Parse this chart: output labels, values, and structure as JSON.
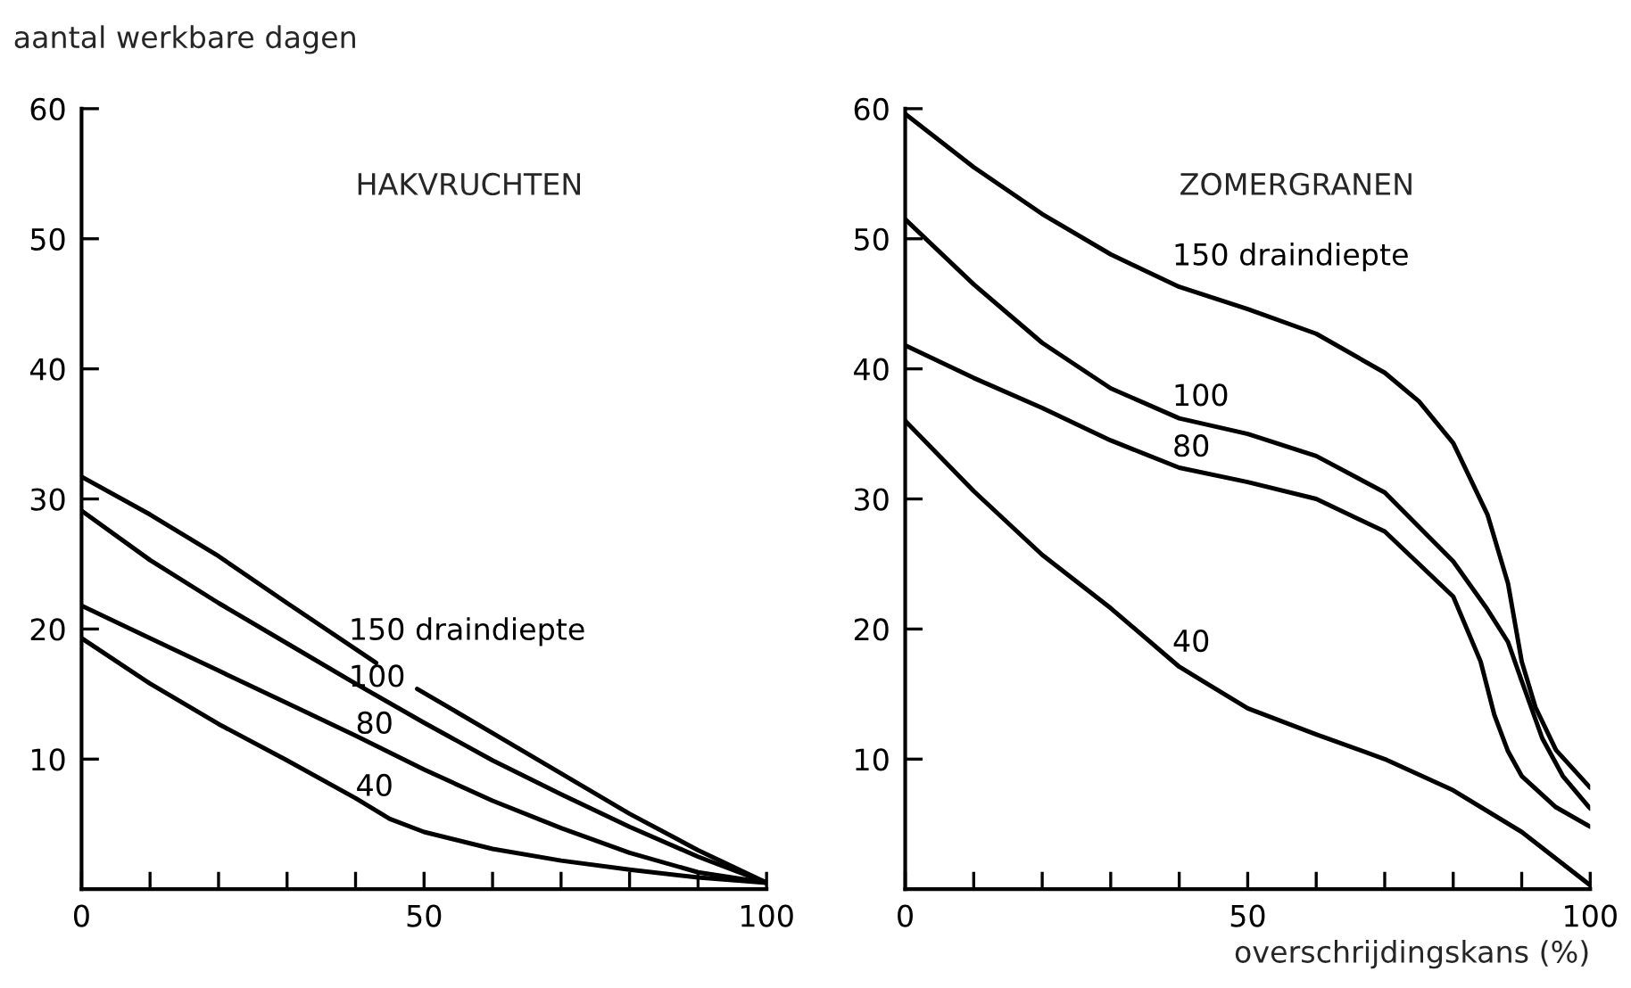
{
  "chart_data": [
    {
      "type": "line",
      "title": "HAKVRUCHTEN",
      "ylabel": "aantal werkbare dagen",
      "xlim": [
        0,
        100
      ],
      "ylim": [
        0,
        60
      ],
      "xticks": [
        0,
        {
          "value": 10,
          "label": null
        },
        {
          "value": 20,
          "label": null
        },
        {
          "value": 30,
          "label": null
        },
        {
          "value": 40,
          "label": null
        },
        50,
        {
          "value": 60,
          "label": null
        },
        {
          "value": 70,
          "label": null
        },
        {
          "value": 80,
          "label": null
        },
        {
          "value": 90,
          "label": null
        },
        100
      ],
      "yticks": [
        10,
        20,
        30,
        40,
        50,
        60
      ],
      "grid": false,
      "legend": false,
      "marker": "none",
      "line_style": "solid",
      "series": [
        {
          "color": "#000000",
          "x": [
            0,
            10,
            20,
            30,
            43,
            46,
            49,
            60,
            70,
            80,
            90,
            100
          ],
          "values": [
            31.7,
            28.8,
            25.6,
            22.0,
            17.4,
            null,
            15.4,
            12.0,
            8.9,
            5.8,
            3.0,
            0.5
          ]
        },
        {
          "color": "#000000",
          "x": [
            0,
            10,
            20,
            30,
            40,
            50,
            60,
            70,
            80,
            90,
            100
          ],
          "values": [
            29.1,
            25.3,
            22.0,
            18.9,
            15.8,
            12.8,
            9.9,
            7.3,
            4.8,
            2.5,
            0.5
          ]
        },
        {
          "color": "#000000",
          "x": [
            0,
            10,
            20,
            30,
            40,
            50,
            60,
            70,
            80,
            90,
            100
          ],
          "values": [
            21.8,
            19.3,
            16.8,
            14.3,
            11.8,
            9.2,
            6.8,
            4.7,
            2.8,
            1.3,
            0.5
          ]
        },
        {
          "color": "#000000",
          "x": [
            0,
            10,
            20,
            30,
            40,
            45,
            50,
            60,
            70,
            80,
            90,
            100
          ],
          "values": [
            19.3,
            15.8,
            12.7,
            9.9,
            7.0,
            5.4,
            4.4,
            3.1,
            2.2,
            1.5,
            0.9,
            0.5
          ]
        }
      ],
      "annotations": [
        "150 draindiepte",
        "100",
        "80",
        "40"
      ]
    },
    {
      "type": "line",
      "title": "ZOMERGRANEN",
      "xlabel": "overschrijdingskans (%)",
      "xlim": [
        0,
        100
      ],
      "ylim": [
        0,
        60
      ],
      "xticks": [
        0,
        {
          "value": 10,
          "label": null
        },
        {
          "value": 20,
          "label": null
        },
        {
          "value": 30,
          "label": null
        },
        {
          "value": 40,
          "label": null
        },
        50,
        {
          "value": 60,
          "label": null
        },
        {
          "value": 70,
          "label": null
        },
        {
          "value": 80,
          "label": null
        },
        {
          "value": 90,
          "label": null
        },
        100
      ],
      "yticks": [
        10,
        20,
        30,
        40,
        50,
        60
      ],
      "grid": false,
      "legend": false,
      "marker": "none",
      "line_style": "solid",
      "series": [
        {
          "color": "#000000",
          "x": [
            0,
            10,
            20,
            30,
            40,
            50,
            60,
            70,
            75,
            80,
            85,
            88,
            90,
            92,
            95,
            100
          ],
          "values": [
            59.6,
            55.5,
            51.9,
            48.8,
            46.3,
            44.6,
            42.7,
            39.7,
            37.5,
            34.3,
            28.8,
            23.5,
            17.5,
            14.0,
            10.7,
            7.8
          ]
        },
        {
          "color": "#000000",
          "x": [
            0,
            10,
            20,
            30,
            40,
            50,
            60,
            70,
            80,
            85,
            88,
            90,
            93,
            96,
            100
          ],
          "values": [
            51.5,
            46.5,
            42.0,
            38.5,
            36.2,
            35.0,
            33.3,
            30.5,
            25.2,
            21.5,
            19.0,
            16.0,
            11.6,
            8.7,
            6.2
          ]
        },
        {
          "color": "#000000",
          "x": [
            0,
            10,
            20,
            30,
            40,
            50,
            60,
            70,
            80,
            84,
            86,
            88,
            90,
            95,
            100
          ],
          "values": [
            41.8,
            39.3,
            37.0,
            34.5,
            32.4,
            31.3,
            30.0,
            27.5,
            22.5,
            17.5,
            13.4,
            10.6,
            8.7,
            6.3,
            4.8
          ]
        },
        {
          "color": "#000000",
          "x": [
            0,
            10,
            20,
            30,
            40,
            50,
            60,
            70,
            80,
            90,
            100
          ],
          "values": [
            36.0,
            30.6,
            25.7,
            21.6,
            17.1,
            13.9,
            11.9,
            10.0,
            7.6,
            4.4,
            0.3
          ]
        }
      ],
      "annotations": [
        "150 draindiepte",
        "100",
        "80",
        "40"
      ]
    }
  ]
}
